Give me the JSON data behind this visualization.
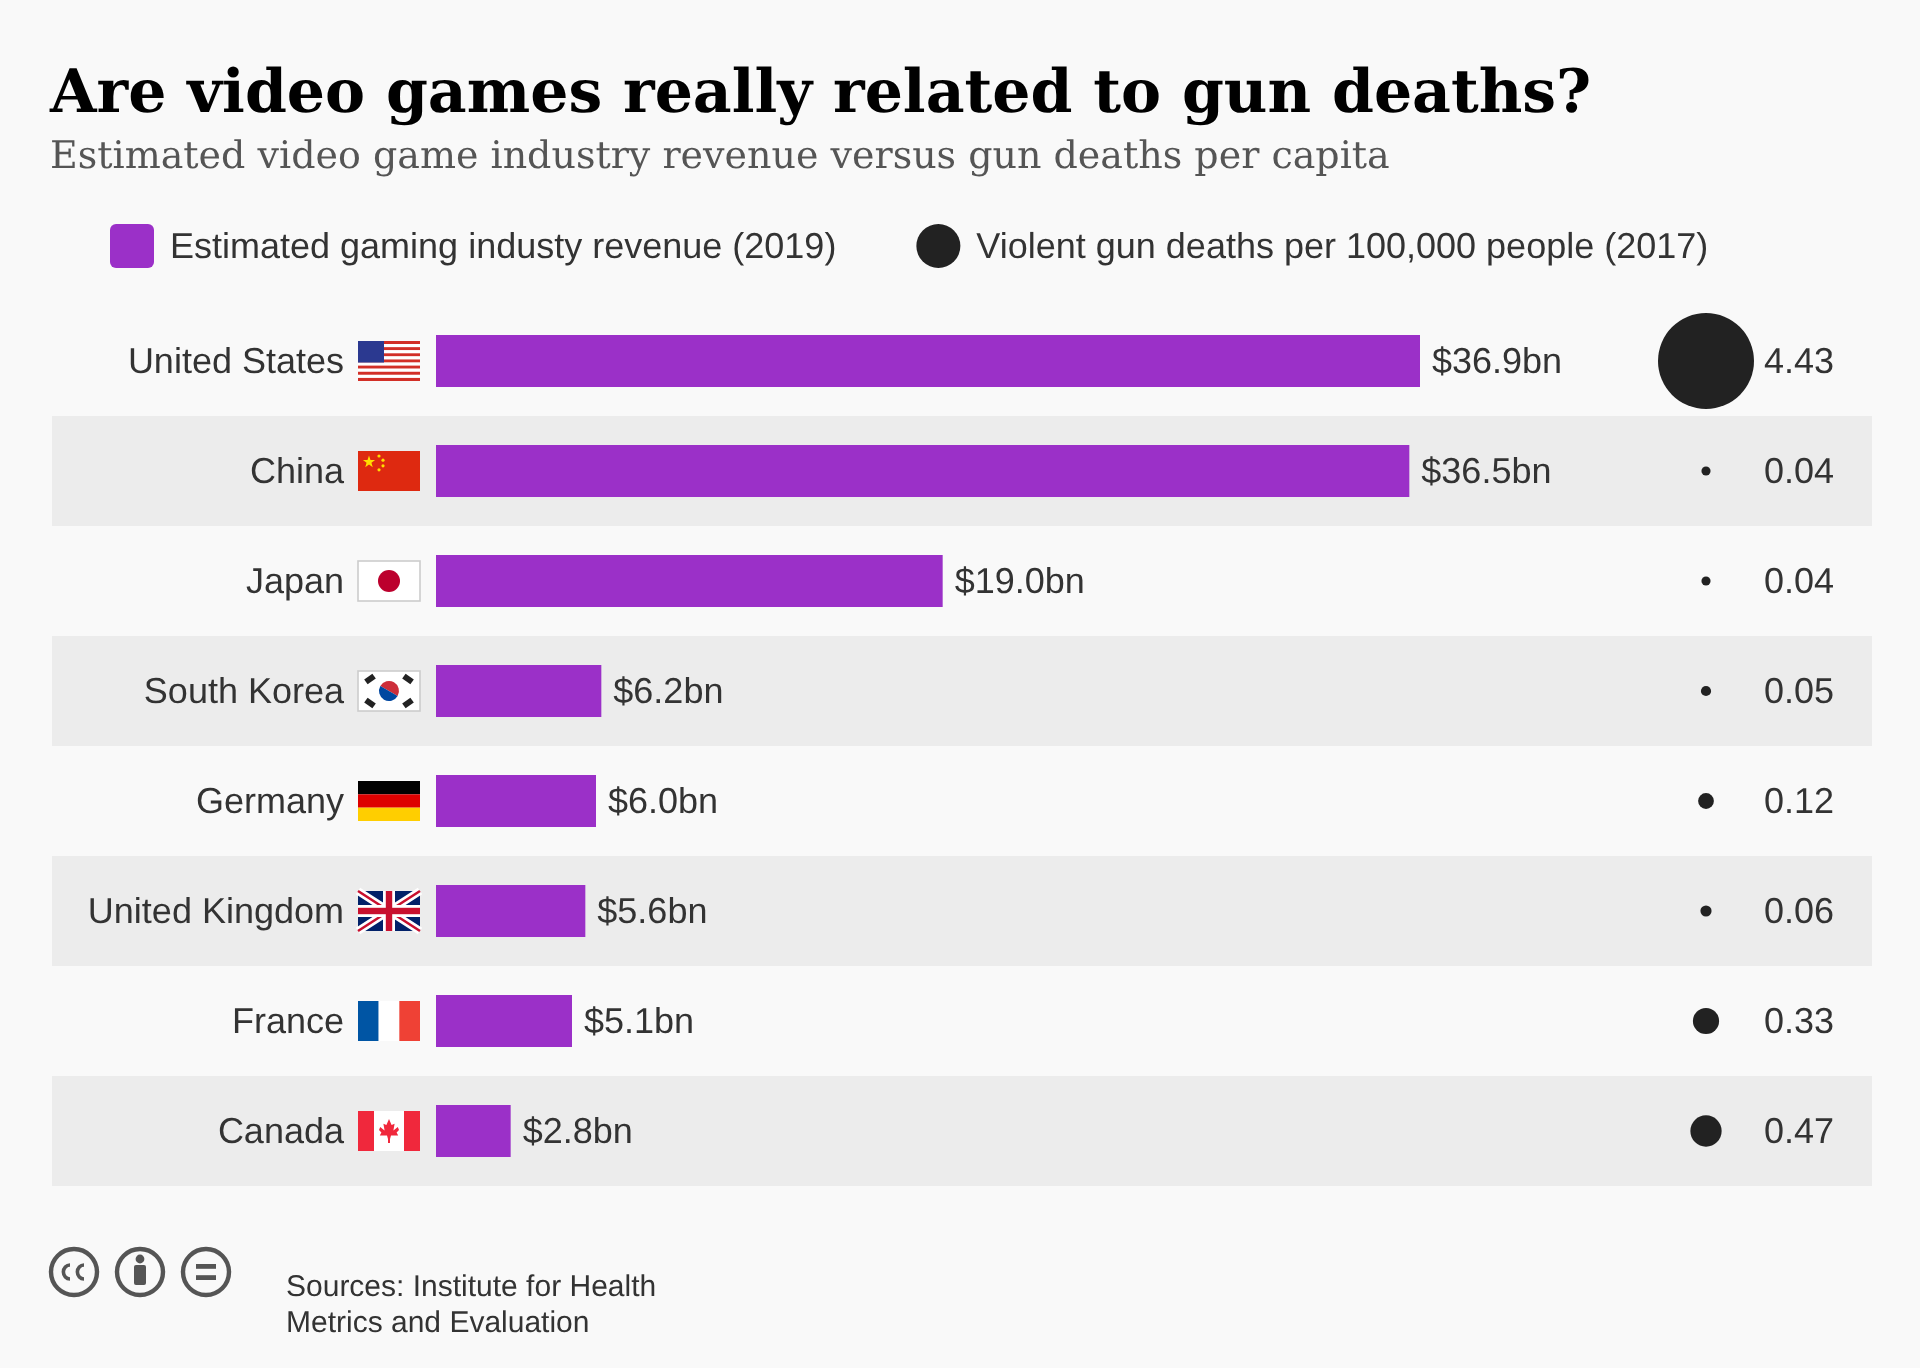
{
  "chart_data": [
    {
      "type": "bar",
      "orientation": "horizontal",
      "title": "Are video games really related to gun deaths?",
      "subtitle": "Estimated video game industry revenue versus gun deaths per capita",
      "categories": [
        "United States",
        "China",
        "Japan",
        "South Korea",
        "Germany",
        "United Kingdom",
        "France",
        "Canada"
      ],
      "series": [
        {
          "name": "Estimated gaming industy revenue (2019)",
          "color": "#9b30c8",
          "values": [
            36.9,
            36.5,
            19.0,
            6.2,
            6.0,
            5.6,
            5.1,
            2.8
          ],
          "value_labels": [
            "$36.9bn",
            "$36.5bn",
            "$19.0bn",
            "$6.2bn",
            "$6.0bn",
            "$5.6bn",
            "$5.1bn",
            "$2.8bn"
          ]
        }
      ],
      "legend": "top",
      "annotations": [
        "Sources: Institute for Health Metrics and Evaluation"
      ]
    },
    {
      "type": "other",
      "categories": [
        null,
        null,
        null,
        null,
        null,
        null,
        null,
        null
      ],
      "series": [
        {
          "name": "Violent gun deaths per 100,000 people (2017)",
          "color": "#222222",
          "values": [
            4.43,
            0.04,
            0.04,
            0.05,
            0.12,
            0.06,
            0.33,
            0.47
          ]
        }
      ],
      "data_labels": true,
      "legend": "top"
    }
  ]
}
